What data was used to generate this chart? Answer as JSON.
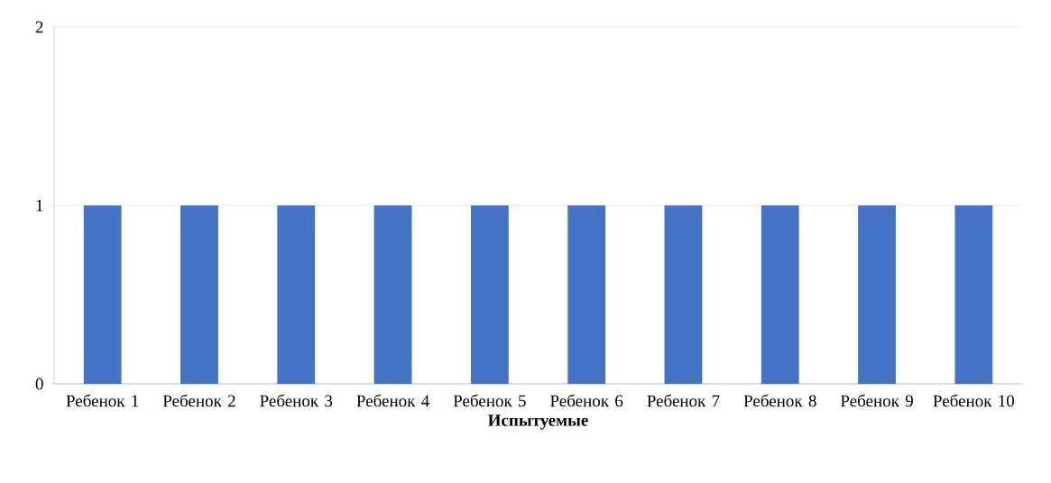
{
  "chart_data": {
    "type": "bar",
    "xlabel": "Испытуемые",
    "categories": [
      "Ребенок 1",
      "Ребенок 2",
      "Ребенок 3",
      "Ребенок 4",
      "Ребенок 5",
      "Ребенок 6",
      "Ребенок 7",
      "Ребенок 8",
      "Ребенок 9",
      "Ребенок 10"
    ],
    "values": [
      1,
      1,
      1,
      1,
      1,
      1,
      1,
      1,
      1,
      1
    ],
    "color": "#4472c4",
    "ylim": [
      0,
      2
    ],
    "yticks": [
      0,
      1,
      2
    ],
    "grid": "y"
  }
}
